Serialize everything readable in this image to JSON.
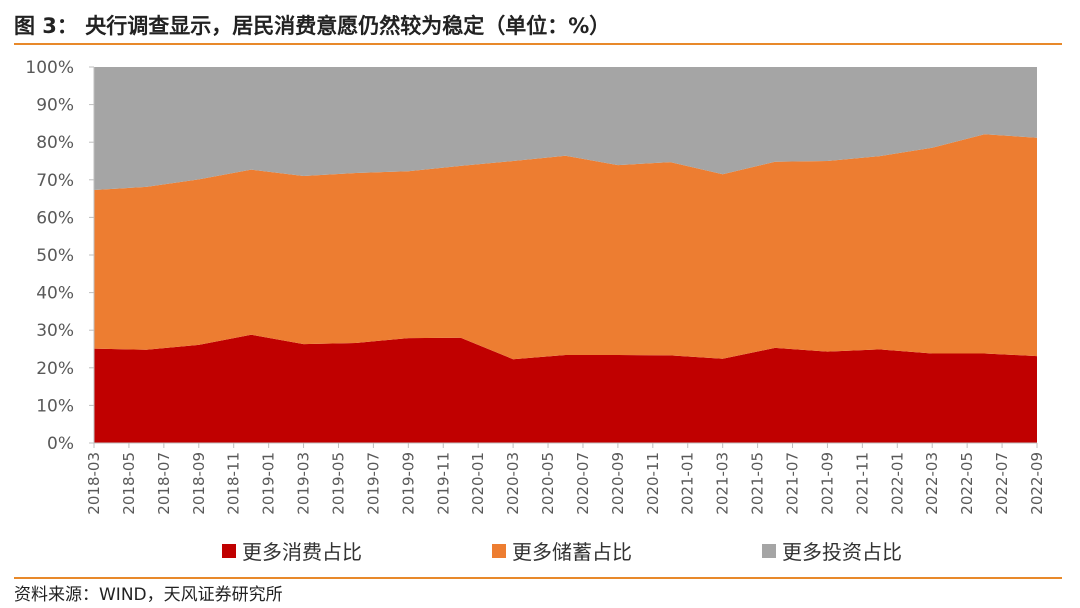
{
  "header": {
    "title": "图 3： 央行调查显示，居民消费意愿仍然较为稳定（单位：%）"
  },
  "footer": {
    "source": "资料来源：WIND，天风证券研究所"
  },
  "chart_data": {
    "type": "area",
    "stacked": true,
    "x": [
      "2018-03",
      "2018-06",
      "2018-09",
      "2018-12",
      "2019-03",
      "2019-06",
      "2019-09",
      "2019-12",
      "2020-03",
      "2020-06",
      "2020-09",
      "2020-12",
      "2021-03",
      "2021-06",
      "2021-09",
      "2021-12",
      "2022-03",
      "2022-06",
      "2022-09"
    ],
    "x_tick_labels": [
      "2018-03",
      "2018-05",
      "2018-07",
      "2018-09",
      "2018-11",
      "2019-01",
      "2019-03",
      "2019-05",
      "2019-07",
      "2019-09",
      "2019-11",
      "2020-01",
      "2020-03",
      "2020-05",
      "2020-07",
      "2020-09",
      "2020-11",
      "2021-01",
      "2021-03",
      "2021-05",
      "2021-07",
      "2021-09",
      "2021-11",
      "2022-01",
      "2022-03",
      "2022-05",
      "2022-07",
      "2022-09"
    ],
    "y_tick_labels": [
      "0%",
      "10%",
      "20%",
      "30%",
      "40%",
      "50%",
      "60%",
      "70%",
      "80%",
      "90%",
      "100%"
    ],
    "ylim": [
      0,
      100
    ],
    "grid": false,
    "legend_position": "bottom",
    "series": [
      {
        "name": "更多消费占比",
        "color": "#c00000",
        "values": [
          25.1,
          24.8,
          26.1,
          28.8,
          26.3,
          26.6,
          27.9,
          28.0,
          22.3,
          23.4,
          23.4,
          23.3,
          22.4,
          25.3,
          24.3,
          24.9,
          23.8,
          23.8,
          23.1
        ]
      },
      {
        "name": "更多储蓄占比",
        "color": "#ed7d31",
        "values": [
          42.2,
          43.3,
          44.0,
          43.9,
          44.7,
          45.2,
          44.4,
          45.7,
          52.7,
          53.0,
          50.5,
          51.4,
          49.1,
          49.5,
          50.7,
          51.4,
          54.7,
          58.3,
          58.1
        ]
      },
      {
        "name": "更多投资占比",
        "color": "#a5a5a5",
        "values": [
          32.7,
          31.9,
          29.9,
          27.3,
          29.0,
          28.2,
          27.7,
          26.3,
          25.0,
          23.6,
          26.1,
          25.3,
          28.5,
          25.2,
          25.0,
          23.7,
          21.5,
          17.9,
          18.8
        ]
      }
    ]
  }
}
